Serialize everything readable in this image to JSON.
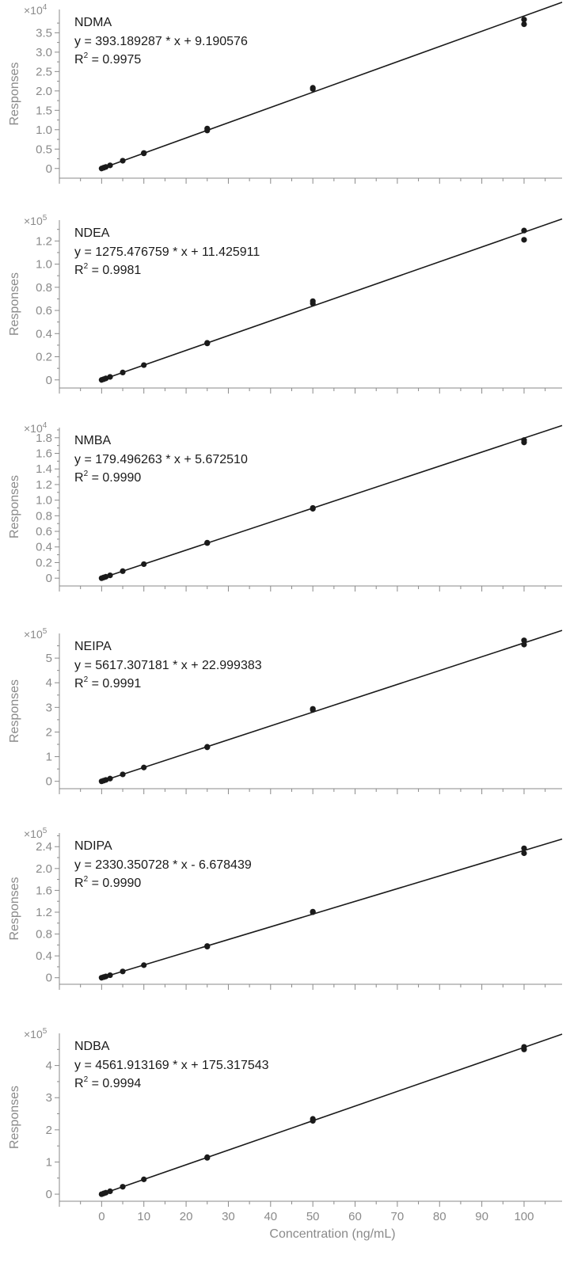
{
  "chart_data": [
    {
      "type": "scatter",
      "compound": "NDMA",
      "multiplier": "×10",
      "exponent": "4",
      "equation": "y = 393.189287 * x  + 9.190576",
      "r2_label": "R",
      "r2_sup": "2",
      "r2_value": " = 0.9975",
      "ylabel": "Responses",
      "yticks": [
        "0",
        "0.5",
        "1.0",
        "1.5",
        "2.0",
        "2.5",
        "3.0",
        "3.5"
      ],
      "ytick_values": [
        0,
        0.5,
        1.0,
        1.5,
        2.0,
        2.5,
        3.0,
        3.5
      ],
      "ylim": [
        -0.25,
        4.1
      ],
      "fit": {
        "slope": 0.0393189287,
        "intercept": 0.0009190576
      },
      "points": [
        [
          0,
          0
        ],
        [
          0.5,
          0.02
        ],
        [
          1,
          0.04
        ],
        [
          2,
          0.08
        ],
        [
          5,
          0.2
        ],
        [
          10,
          0.4
        ],
        [
          10,
          0.39
        ],
        [
          25,
          0.98
        ],
        [
          25,
          1.03
        ],
        [
          50,
          2.05
        ],
        [
          50,
          2.08
        ],
        [
          100,
          3.72
        ],
        [
          100,
          3.84
        ]
      ]
    },
    {
      "type": "scatter",
      "compound": "NDEA",
      "multiplier": "×10",
      "exponent": "5",
      "equation": "y = 1275.476759 * x  + 11.425911",
      "r2_label": "R",
      "r2_sup": "2",
      "r2_value": " = 0.9981",
      "ylabel": "Responses",
      "yticks": [
        "0",
        "0.2",
        "0.4",
        "0.6",
        "0.8",
        "1.0",
        "1.2"
      ],
      "ytick_values": [
        0,
        0.2,
        0.4,
        0.6,
        0.8,
        1.0,
        1.2
      ],
      "ylim": [
        -0.07,
        1.38
      ],
      "fit": {
        "slope": 0.01275476759,
        "intercept": 0.00011425911
      },
      "points": [
        [
          0,
          0
        ],
        [
          0.5,
          0.006
        ],
        [
          1,
          0.013
        ],
        [
          2,
          0.026
        ],
        [
          5,
          0.064
        ],
        [
          10,
          0.128
        ],
        [
          25,
          0.32
        ],
        [
          25,
          0.315
        ],
        [
          50,
          0.66
        ],
        [
          50,
          0.68
        ],
        [
          100,
          1.21
        ],
        [
          100,
          1.29
        ]
      ]
    },
    {
      "type": "scatter",
      "compound": "NMBA",
      "multiplier": "×10",
      "exponent": "4",
      "equation": "y = 179.496263 * x  + 5.672510",
      "r2_label": "R",
      "r2_sup": "2",
      "r2_value": " = 0.9990",
      "ylabel": "Responses",
      "yticks": [
        "0",
        "0.2",
        "0.4",
        "0.6",
        "0.8",
        "1.0",
        "1.2",
        "1.4",
        "1.6",
        "1.8"
      ],
      "ytick_values": [
        0,
        0.2,
        0.4,
        0.6,
        0.8,
        1.0,
        1.2,
        1.4,
        1.6,
        1.8
      ],
      "ylim": [
        -0.1,
        1.93
      ],
      "fit": {
        "slope": 0.0179496263,
        "intercept": 0.000567251
      },
      "points": [
        [
          0,
          0
        ],
        [
          0.5,
          0.009
        ],
        [
          1,
          0.018
        ],
        [
          2,
          0.036
        ],
        [
          5,
          0.09
        ],
        [
          10,
          0.18
        ],
        [
          25,
          0.45
        ],
        [
          25,
          0.455
        ],
        [
          50,
          0.89
        ],
        [
          50,
          0.9
        ],
        [
          100,
          1.74
        ],
        [
          100,
          1.77
        ]
      ]
    },
    {
      "type": "scatter",
      "compound": "NEIPA",
      "multiplier": "×10",
      "exponent": "5",
      "equation": "y = 5617.307181 * x  + 22.999383",
      "r2_label": "R",
      "r2_sup": "2",
      "r2_value": " = 0.9991",
      "ylabel": "Responses",
      "yticks": [
        "0",
        "1",
        "2",
        "3",
        "4",
        "5"
      ],
      "ytick_values": [
        0,
        1,
        2,
        3,
        4,
        5
      ],
      "ylim": [
        -0.3,
        6.0
      ],
      "fit": {
        "slope": 0.05617307181,
        "intercept": 0.00022999383
      },
      "points": [
        [
          0,
          0
        ],
        [
          0.5,
          0.028
        ],
        [
          1,
          0.056
        ],
        [
          2,
          0.11
        ],
        [
          5,
          0.28
        ],
        [
          10,
          0.56
        ],
        [
          25,
          1.38
        ],
        [
          25,
          1.4
        ],
        [
          50,
          2.9
        ],
        [
          50,
          2.94
        ],
        [
          100,
          5.55
        ],
        [
          100,
          5.72
        ]
      ]
    },
    {
      "type": "scatter",
      "compound": "NDIPA",
      "multiplier": "×10",
      "exponent": "5",
      "equation": "y = 2330.350728 * x  - 6.678439",
      "r2_label": "R",
      "r2_sup": "2",
      "r2_value": " = 0.9990",
      "ylabel": "Responses",
      "yticks": [
        "0",
        "0.4",
        "0.8",
        "1.2",
        "1.6",
        "2.0",
        "2.4"
      ],
      "ytick_values": [
        0,
        0.4,
        0.8,
        1.2,
        1.6,
        2.0,
        2.4
      ],
      "ylim": [
        -0.12,
        2.65
      ],
      "fit": {
        "slope": 0.02330350728,
        "intercept": -6.678439e-05
      },
      "points": [
        [
          0,
          0
        ],
        [
          0.5,
          0.012
        ],
        [
          1,
          0.023
        ],
        [
          2,
          0.046
        ],
        [
          5,
          0.115
        ],
        [
          10,
          0.23
        ],
        [
          25,
          0.57
        ],
        [
          25,
          0.58
        ],
        [
          50,
          1.2
        ],
        [
          50,
          1.21
        ],
        [
          100,
          2.28
        ],
        [
          100,
          2.37
        ]
      ]
    },
    {
      "type": "scatter",
      "compound": "NDBA",
      "multiplier": "×10",
      "exponent": "5",
      "equation": "y = 4561.913169 * x  + 175.317543",
      "r2_label": "R",
      "r2_sup": "2",
      "r2_value": " = 0.9994",
      "ylabel": "Responses",
      "yticks": [
        "0",
        "1",
        "2",
        "3",
        "4"
      ],
      "ytick_values": [
        0,
        1,
        2,
        3,
        4
      ],
      "ylim": [
        -0.22,
        5.0
      ],
      "fit": {
        "slope": 0.04561913169,
        "intercept": 0.00175317543
      },
      "points": [
        [
          0,
          0
        ],
        [
          0.5,
          0.023
        ],
        [
          1,
          0.046
        ],
        [
          2,
          0.09
        ],
        [
          5,
          0.23
        ],
        [
          10,
          0.46
        ],
        [
          25,
          1.13
        ],
        [
          25,
          1.15
        ],
        [
          50,
          2.28
        ],
        [
          50,
          2.34
        ],
        [
          100,
          4.5
        ],
        [
          100,
          4.58
        ]
      ]
    }
  ],
  "x_axis": {
    "label": "Concentration (ng/mL)",
    "ticks": [
      "0",
      "10",
      "20",
      "30",
      "40",
      "50",
      "60",
      "70",
      "80",
      "90",
      "100"
    ],
    "tick_values": [
      0,
      10,
      20,
      30,
      40,
      50,
      60,
      70,
      80,
      90,
      100
    ],
    "xlim": [
      -10,
      109
    ]
  }
}
